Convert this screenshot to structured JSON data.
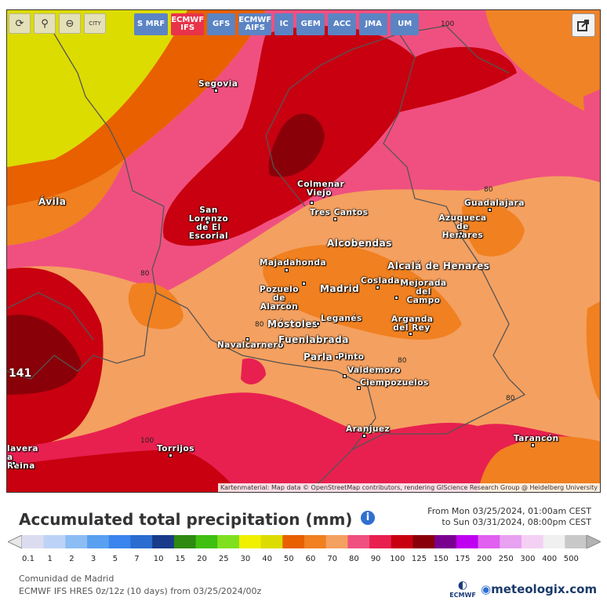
{
  "toolbar": {
    "buttons": [
      {
        "icon": "refresh-icon",
        "glyph": "⟳"
      },
      {
        "icon": "location-pin-icon",
        "glyph": "⚲"
      },
      {
        "icon": "zoom-icon",
        "glyph": "⊖"
      },
      {
        "icon": "city-icon",
        "glyph": "CITY"
      }
    ],
    "models": [
      "S MRF",
      "ECMWF IFS",
      "GFS",
      "ECMWF AIFS",
      "IC",
      "GEM",
      "ACC",
      "JMA",
      "UM"
    ],
    "active_model": "ECMWF IFS"
  },
  "map": {
    "cities": [
      {
        "name": "Segovia",
        "big": false
      },
      {
        "name": "Ávila",
        "big": true
      },
      {
        "name": "Colmenar Viejo",
        "big": false
      },
      {
        "name": "San Lorenzo de El Escorial",
        "big": false
      },
      {
        "name": "Tres Cantos",
        "big": false
      },
      {
        "name": "Guadalajara",
        "big": false
      },
      {
        "name": "Azuqueca de Henares",
        "big": false
      },
      {
        "name": "Alcobendas",
        "big": true
      },
      {
        "name": "Majadahonda",
        "big": false
      },
      {
        "name": "Alcalá de Henares",
        "big": true
      },
      {
        "name": "Pozuelo de Alarcón",
        "big": false
      },
      {
        "name": "Madrid",
        "big": true
      },
      {
        "name": "Coslada",
        "big": false
      },
      {
        "name": "Mejorada del Campo",
        "big": false
      },
      {
        "name": "Móstoles",
        "big": true
      },
      {
        "name": "Leganés",
        "big": false
      },
      {
        "name": "Arganda del Rey",
        "big": false
      },
      {
        "name": "Navalcarnero",
        "big": false
      },
      {
        "name": "Fuenlabrada",
        "big": true
      },
      {
        "name": "Parla",
        "big": true
      },
      {
        "name": "Pinto",
        "big": false
      },
      {
        "name": "Valdemoro",
        "big": false
      },
      {
        "name": "Ciempozuelos",
        "big": false
      },
      {
        "name": "Aranjuez",
        "big": false
      },
      {
        "name": "Torrijos",
        "big": false
      },
      {
        "name": "Tarancón",
        "big": false
      },
      {
        "name": "lavera a Reina",
        "big": false
      }
    ],
    "isolines": [
      "100",
      "80",
      "80",
      "80",
      "80",
      "80",
      "100"
    ],
    "side_value": "141",
    "attribution": "Kartenmaterial: Map data © OpenStreetMap contributors, rendering GIScience Research Group @ Heidelberg University"
  },
  "title": "Accumulated total precipitation (mm)",
  "date_from": "From Mon 03/25/2024, 01:00am CEST",
  "date_to": "to Sun 03/31/2024, 08:00pm CEST",
  "legend": {
    "labels": [
      "0.1",
      "1",
      "2",
      "3",
      "5",
      "7",
      "10",
      "15",
      "20",
      "25",
      "30",
      "40",
      "50",
      "60",
      "70",
      "80",
      "90",
      "100",
      "125",
      "150",
      "175",
      "200",
      "250",
      "300",
      "400",
      "500"
    ],
    "colors": [
      "#dcdcf0",
      "#bcd2f6",
      "#8cbcf4",
      "#5aa0f0",
      "#3a84ee",
      "#2a6cd0",
      "#1a3a8a",
      "#2e8a10",
      "#40c010",
      "#80e020",
      "#f0f000",
      "#dcdc00",
      "#e86000",
      "#f08020",
      "#f4a060",
      "#f05080",
      "#e82050",
      "#c80010",
      "#8a0008",
      "#7a0090",
      "#c000f0",
      "#e060f0",
      "#e8a0f0",
      "#f4d0f4",
      "#f0f0f0",
      "#c8c8c8"
    ],
    "arrow_left": "#e8e8e8",
    "arrow_right": "#b4b4b4"
  },
  "footer": {
    "region": "Comunidad de Madrid",
    "model_run": "ECMWF IFS HRES 0z/12z (10 days) from 03/25/2024/00z"
  },
  "logos": {
    "ecmwf": "ECMWF",
    "brand": "meteologix.com"
  }
}
